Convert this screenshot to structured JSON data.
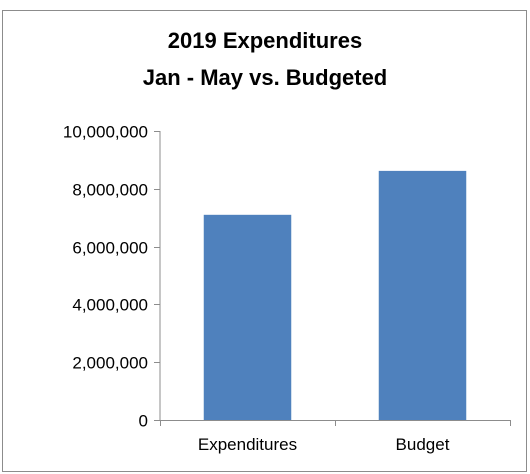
{
  "chart_data": {
    "type": "bar",
    "title": [
      "2019 Expenditures",
      "Jan - May vs. Budgeted"
    ],
    "categories": [
      "Expenditures",
      "Budget"
    ],
    "values": [
      7100000,
      8620000
    ],
    "ylim": [
      0,
      10000000
    ],
    "yticks": [
      0,
      2000000,
      4000000,
      6000000,
      8000000,
      10000000
    ],
    "ytick_labels": [
      "0",
      "2,000,000",
      "4,000,000",
      "6,000,000",
      "8,000,000",
      "10,000,000"
    ],
    "xlabel": "",
    "ylabel": "",
    "grid": false,
    "legend": "none",
    "bar_color": "#4f81bd"
  }
}
